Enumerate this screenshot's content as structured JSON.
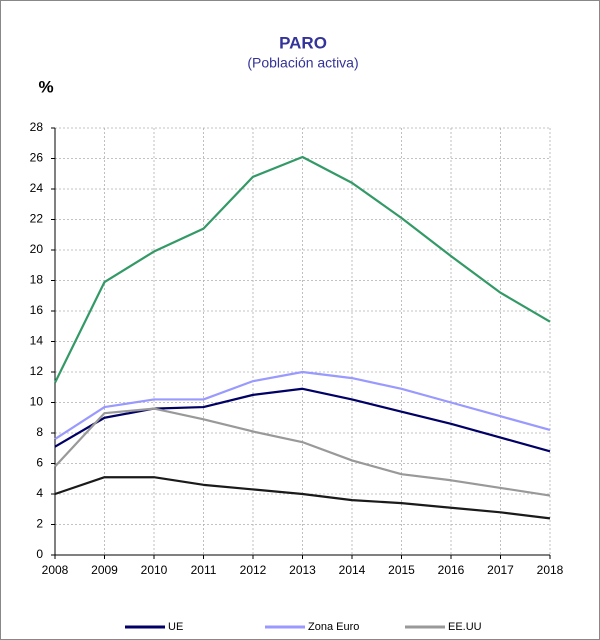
{
  "chart_data": {
    "type": "line",
    "title": "PARO",
    "subtitle": "(Población activa)",
    "y_label": "%",
    "x": [
      2008,
      2009,
      2010,
      2011,
      2012,
      2013,
      2014,
      2015,
      2016,
      2017,
      2018
    ],
    "xlim": [
      2008,
      2018
    ],
    "xticks": [
      2008,
      2009,
      2010,
      2011,
      2012,
      2013,
      2014,
      2015,
      2016,
      2017,
      2018
    ],
    "ylim": [
      0,
      28
    ],
    "yticks": [
      0,
      2,
      4,
      6,
      8,
      10,
      12,
      14,
      16,
      18,
      20,
      22,
      24,
      26,
      28
    ],
    "grid": true,
    "legend": "bottom",
    "series": [
      {
        "color": "#339966",
        "values": [
          11.3,
          17.9,
          19.9,
          21.4,
          24.8,
          26.1,
          24.4,
          22.1,
          19.6,
          17.2,
          15.3
        ]
      },
      {
        "name": "UE",
        "color": "#000066",
        "values": [
          7.1,
          9.0,
          9.6,
          9.7,
          10.5,
          10.9,
          10.2,
          9.4,
          8.6,
          7.7,
          6.8
        ]
      },
      {
        "name": "Zona Euro",
        "color": "#9999ff",
        "values": [
          7.6,
          9.7,
          10.2,
          10.2,
          11.4,
          12.0,
          11.6,
          10.9,
          10.0,
          9.1,
          8.2
        ]
      },
      {
        "name": "EE.UU",
        "color": "#999999",
        "values": [
          5.8,
          9.3,
          9.6,
          8.9,
          8.1,
          7.4,
          6.2,
          5.3,
          4.9,
          4.4,
          3.9
        ]
      },
      {
        "color": "#1a1a1a",
        "values": [
          4.0,
          5.1,
          5.1,
          4.6,
          4.3,
          4.0,
          3.6,
          3.4,
          3.1,
          2.8,
          2.4
        ]
      }
    ]
  }
}
